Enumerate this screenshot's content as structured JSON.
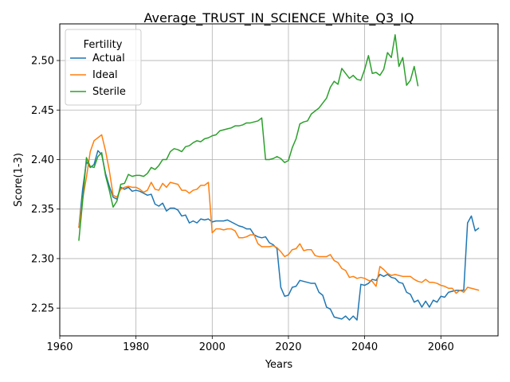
{
  "chart_data": {
    "type": "line",
    "title": "Average_TRUST_IN_SCIENCE_White_Q3_IQ",
    "xlabel": "Years",
    "ylabel": "Score(1-3)",
    "xlim": [
      1960,
      2075
    ],
    "ylim": [
      2.222,
      2.537
    ],
    "xticks": [
      "1960",
      "1980",
      "2000",
      "2020",
      "2040",
      "2060"
    ],
    "yticks": [
      "2.25",
      "2.30",
      "2.35",
      "2.40",
      "2.45",
      "2.50"
    ],
    "grid": true,
    "legend": {
      "title": "Fertility",
      "placement": "top-left"
    },
    "series": [
      {
        "name": "Actual",
        "color": "#1f77b4",
        "points": [
          [
            1965,
            2.331
          ],
          [
            1966,
            2.37
          ],
          [
            1967,
            2.398
          ],
          [
            1968,
            2.392
          ],
          [
            1969,
            2.395
          ],
          [
            1970,
            2.409
          ],
          [
            1971,
            2.405
          ],
          [
            1972,
            2.386
          ],
          [
            1973,
            2.373
          ],
          [
            1974,
            2.362
          ],
          [
            1975,
            2.36
          ],
          [
            1976,
            2.372
          ],
          [
            1977,
            2.37
          ],
          [
            1978,
            2.372
          ],
          [
            1979,
            2.368
          ],
          [
            1980,
            2.369
          ],
          [
            1981,
            2.368
          ],
          [
            1982,
            2.366
          ],
          [
            1983,
            2.364
          ],
          [
            1984,
            2.365
          ],
          [
            1985,
            2.355
          ],
          [
            1986,
            2.353
          ],
          [
            1987,
            2.356
          ],
          [
            1988,
            2.348
          ],
          [
            1989,
            2.351
          ],
          [
            1990,
            2.351
          ],
          [
            1991,
            2.349
          ],
          [
            1992,
            2.343
          ],
          [
            1993,
            2.344
          ],
          [
            1994,
            2.336
          ],
          [
            1995,
            2.338
          ],
          [
            1996,
            2.336
          ],
          [
            1997,
            2.34
          ],
          [
            1998,
            2.339
          ],
          [
            1999,
            2.34
          ],
          [
            2000,
            2.337
          ],
          [
            2001,
            2.338
          ],
          [
            2002,
            2.338
          ],
          [
            2003,
            2.338
          ],
          [
            2004,
            2.339
          ],
          [
            2005,
            2.337
          ],
          [
            2006,
            2.335
          ],
          [
            2007,
            2.333
          ],
          [
            2008,
            2.332
          ],
          [
            2009,
            2.33
          ],
          [
            2010,
            2.33
          ],
          [
            2011,
            2.324
          ],
          [
            2012,
            2.322
          ],
          [
            2013,
            2.321
          ],
          [
            2014,
            2.322
          ],
          [
            2015,
            2.316
          ],
          [
            2016,
            2.314
          ],
          [
            2017,
            2.31
          ],
          [
            2018,
            2.271
          ],
          [
            2019,
            2.262
          ],
          [
            2020,
            2.263
          ],
          [
            2021,
            2.271
          ],
          [
            2022,
            2.272
          ],
          [
            2023,
            2.278
          ],
          [
            2024,
            2.277
          ],
          [
            2025,
            2.276
          ],
          [
            2026,
            2.275
          ],
          [
            2027,
            2.275
          ],
          [
            2028,
            2.266
          ],
          [
            2029,
            2.263
          ],
          [
            2030,
            2.251
          ],
          [
            2031,
            2.249
          ],
          [
            2032,
            2.241
          ],
          [
            2033,
            2.24
          ],
          [
            2034,
            2.239
          ],
          [
            2035,
            2.242
          ],
          [
            2036,
            2.238
          ],
          [
            2037,
            2.242
          ],
          [
            2038,
            2.238
          ],
          [
            2039,
            2.274
          ],
          [
            2040,
            2.273
          ],
          [
            2041,
            2.275
          ],
          [
            2042,
            2.279
          ],
          [
            2043,
            2.278
          ],
          [
            2044,
            2.284
          ],
          [
            2045,
            2.282
          ],
          [
            2046,
            2.284
          ],
          [
            2047,
            2.281
          ],
          [
            2048,
            2.28
          ],
          [
            2049,
            2.276
          ],
          [
            2050,
            2.275
          ],
          [
            2051,
            2.266
          ],
          [
            2052,
            2.264
          ],
          [
            2053,
            2.256
          ],
          [
            2054,
            2.258
          ],
          [
            2055,
            2.251
          ],
          [
            2056,
            2.257
          ],
          [
            2057,
            2.251
          ],
          [
            2058,
            2.258
          ],
          [
            2059,
            2.256
          ],
          [
            2060,
            2.262
          ],
          [
            2061,
            2.261
          ],
          [
            2062,
            2.266
          ],
          [
            2063,
            2.267
          ],
          [
            2064,
            2.268
          ],
          [
            2065,
            2.268
          ],
          [
            2066,
            2.268
          ],
          [
            2067,
            2.336
          ],
          [
            2068,
            2.343
          ],
          [
            2069,
            2.328
          ],
          [
            2070,
            2.331
          ]
        ]
      },
      {
        "name": "Ideal",
        "color": "#ff7f0e",
        "points": [
          [
            1965,
            2.331
          ],
          [
            1966,
            2.36
          ],
          [
            1967,
            2.382
          ],
          [
            1968,
            2.408
          ],
          [
            1969,
            2.419
          ],
          [
            1970,
            2.422
          ],
          [
            1971,
            2.425
          ],
          [
            1972,
            2.409
          ],
          [
            1973,
            2.389
          ],
          [
            1974,
            2.364
          ],
          [
            1975,
            2.362
          ],
          [
            1976,
            2.37
          ],
          [
            1977,
            2.372
          ],
          [
            1978,
            2.373
          ],
          [
            1979,
            2.372
          ],
          [
            1980,
            2.372
          ],
          [
            1981,
            2.37
          ],
          [
            1982,
            2.367
          ],
          [
            1983,
            2.369
          ],
          [
            1984,
            2.377
          ],
          [
            1985,
            2.37
          ],
          [
            1986,
            2.369
          ],
          [
            1987,
            2.376
          ],
          [
            1988,
            2.372
          ],
          [
            1989,
            2.377
          ],
          [
            1990,
            2.376
          ],
          [
            1991,
            2.375
          ],
          [
            1992,
            2.369
          ],
          [
            1993,
            2.369
          ],
          [
            1994,
            2.366
          ],
          [
            1995,
            2.369
          ],
          [
            1996,
            2.37
          ],
          [
            1997,
            2.374
          ],
          [
            1998,
            2.374
          ],
          [
            1999,
            2.377
          ],
          [
            2000,
            2.326
          ],
          [
            2001,
            2.33
          ],
          [
            2002,
            2.33
          ],
          [
            2003,
            2.329
          ],
          [
            2004,
            2.33
          ],
          [
            2005,
            2.33
          ],
          [
            2006,
            2.328
          ],
          [
            2007,
            2.321
          ],
          [
            2008,
            2.321
          ],
          [
            2009,
            2.322
          ],
          [
            2010,
            2.324
          ],
          [
            2011,
            2.324
          ],
          [
            2012,
            2.315
          ],
          [
            2013,
            2.312
          ],
          [
            2014,
            2.312
          ],
          [
            2015,
            2.312
          ],
          [
            2016,
            2.313
          ],
          [
            2017,
            2.311
          ],
          [
            2018,
            2.307
          ],
          [
            2019,
            2.302
          ],
          [
            2020,
            2.304
          ],
          [
            2021,
            2.309
          ],
          [
            2022,
            2.31
          ],
          [
            2023,
            2.315
          ],
          [
            2024,
            2.308
          ],
          [
            2025,
            2.309
          ],
          [
            2026,
            2.309
          ],
          [
            2027,
            2.303
          ],
          [
            2028,
            2.302
          ],
          [
            2029,
            2.302
          ],
          [
            2030,
            2.302
          ],
          [
            2031,
            2.304
          ],
          [
            2032,
            2.298
          ],
          [
            2033,
            2.296
          ],
          [
            2034,
            2.29
          ],
          [
            2035,
            2.288
          ],
          [
            2036,
            2.281
          ],
          [
            2037,
            2.282
          ],
          [
            2038,
            2.28
          ],
          [
            2039,
            2.281
          ],
          [
            2040,
            2.28
          ],
          [
            2041,
            2.278
          ],
          [
            2042,
            2.277
          ],
          [
            2043,
            2.272
          ],
          [
            2044,
            2.292
          ],
          [
            2045,
            2.289
          ],
          [
            2046,
            2.285
          ],
          [
            2047,
            2.283
          ],
          [
            2048,
            2.284
          ],
          [
            2049,
            2.283
          ],
          [
            2050,
            2.282
          ],
          [
            2051,
            2.282
          ],
          [
            2052,
            2.282
          ],
          [
            2053,
            2.279
          ],
          [
            2054,
            2.277
          ],
          [
            2055,
            2.276
          ],
          [
            2056,
            2.279
          ],
          [
            2057,
            2.276
          ],
          [
            2058,
            2.276
          ],
          [
            2059,
            2.275
          ],
          [
            2060,
            2.273
          ],
          [
            2061,
            2.272
          ],
          [
            2062,
            2.27
          ],
          [
            2063,
            2.27
          ],
          [
            2064,
            2.265
          ],
          [
            2065,
            2.268
          ],
          [
            2066,
            2.266
          ],
          [
            2067,
            2.271
          ],
          [
            2068,
            2.27
          ],
          [
            2069,
            2.269
          ],
          [
            2070,
            2.268
          ]
        ]
      },
      {
        "name": "Sterile",
        "color": "#2ca02c",
        "points": [
          [
            1965,
            2.318
          ],
          [
            1966,
            2.358
          ],
          [
            1967,
            2.402
          ],
          [
            1968,
            2.393
          ],
          [
            1969,
            2.392
          ],
          [
            1970,
            2.403
          ],
          [
            1971,
            2.407
          ],
          [
            1972,
            2.384
          ],
          [
            1973,
            2.369
          ],
          [
            1974,
            2.352
          ],
          [
            1975,
            2.358
          ],
          [
            1976,
            2.375
          ],
          [
            1977,
            2.376
          ],
          [
            1978,
            2.385
          ],
          [
            1979,
            2.383
          ],
          [
            1980,
            2.384
          ],
          [
            1981,
            2.384
          ],
          [
            1982,
            2.383
          ],
          [
            1983,
            2.386
          ],
          [
            1984,
            2.392
          ],
          [
            1985,
            2.39
          ],
          [
            1986,
            2.394
          ],
          [
            1987,
            2.4
          ],
          [
            1988,
            2.4
          ],
          [
            1989,
            2.408
          ],
          [
            1990,
            2.411
          ],
          [
            1991,
            2.41
          ],
          [
            1992,
            2.408
          ],
          [
            1993,
            2.413
          ],
          [
            1994,
            2.414
          ],
          [
            1995,
            2.417
          ],
          [
            1996,
            2.419
          ],
          [
            1997,
            2.418
          ],
          [
            1998,
            2.421
          ],
          [
            1999,
            2.422
          ],
          [
            2000,
            2.424
          ],
          [
            2001,
            2.425
          ],
          [
            2002,
            2.429
          ],
          [
            2003,
            2.43
          ],
          [
            2004,
            2.431
          ],
          [
            2005,
            2.432
          ],
          [
            2006,
            2.434
          ],
          [
            2007,
            2.434
          ],
          [
            2008,
            2.435
          ],
          [
            2009,
            2.437
          ],
          [
            2010,
            2.437
          ],
          [
            2011,
            2.438
          ],
          [
            2012,
            2.439
          ],
          [
            2013,
            2.442
          ],
          [
            2014,
            2.4
          ],
          [
            2015,
            2.4
          ],
          [
            2016,
            2.401
          ],
          [
            2017,
            2.403
          ],
          [
            2018,
            2.401
          ],
          [
            2019,
            2.397
          ],
          [
            2020,
            2.399
          ],
          [
            2021,
            2.412
          ],
          [
            2022,
            2.421
          ],
          [
            2023,
            2.436
          ],
          [
            2024,
            2.438
          ],
          [
            2025,
            2.439
          ],
          [
            2026,
            2.446
          ],
          [
            2027,
            2.449
          ],
          [
            2028,
            2.452
          ],
          [
            2029,
            2.457
          ],
          [
            2030,
            2.462
          ],
          [
            2031,
            2.473
          ],
          [
            2032,
            2.479
          ],
          [
            2033,
            2.476
          ],
          [
            2034,
            2.492
          ],
          [
            2035,
            2.487
          ],
          [
            2036,
            2.482
          ],
          [
            2037,
            2.485
          ],
          [
            2038,
            2.481
          ],
          [
            2039,
            2.48
          ],
          [
            2040,
            2.491
          ],
          [
            2041,
            2.505
          ],
          [
            2042,
            2.487
          ],
          [
            2043,
            2.488
          ],
          [
            2044,
            2.485
          ],
          [
            2045,
            2.491
          ],
          [
            2046,
            2.508
          ],
          [
            2047,
            2.503
          ],
          [
            2048,
            2.526
          ],
          [
            2049,
            2.494
          ],
          [
            2050,
            2.503
          ],
          [
            2051,
            2.475
          ],
          [
            2052,
            2.48
          ],
          [
            2053,
            2.494
          ],
          [
            2054,
            2.474
          ]
        ]
      }
    ]
  }
}
